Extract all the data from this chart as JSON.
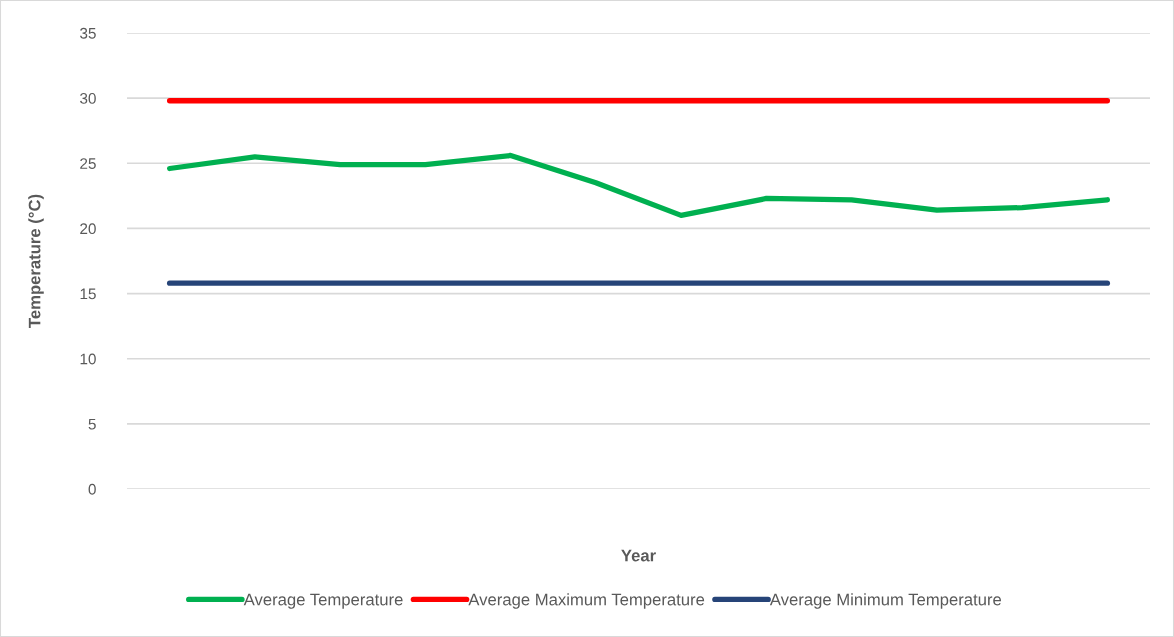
{
  "chart_data": {
    "type": "line",
    "xlabel": "Year",
    "ylabel": "Temperature (°C)",
    "categories": [
      null,
      null,
      null,
      null,
      null,
      null,
      null,
      null,
      null,
      null,
      null,
      null
    ],
    "series": [
      {
        "name": "Average Temperature",
        "color": "#00b050",
        "values": [
          24.6,
          25.5,
          24.9,
          24.9,
          25.6,
          23.5,
          21.0,
          22.3,
          22.2,
          21.4,
          21.6,
          22.2
        ]
      },
      {
        "name": "Average Maximum Temperature",
        "color": "#ff0000",
        "values": [
          29.8,
          29.8,
          29.8,
          29.8,
          29.8,
          29.8,
          29.8,
          29.8,
          29.8,
          29.8,
          29.8,
          29.8
        ]
      },
      {
        "name": "Average Minimum Temperature",
        "color": "#264478",
        "values": [
          15.8,
          15.8,
          15.8,
          15.8,
          15.8,
          15.8,
          15.8,
          15.8,
          15.8,
          15.8,
          15.8,
          15.8
        ]
      }
    ],
    "ylim": [
      0,
      35
    ],
    "yticks": [
      0,
      5,
      10,
      15,
      20,
      25,
      30,
      35
    ],
    "grid": "y",
    "legend": "bottom",
    "line_style": "solid",
    "tick_labels": "y"
  }
}
